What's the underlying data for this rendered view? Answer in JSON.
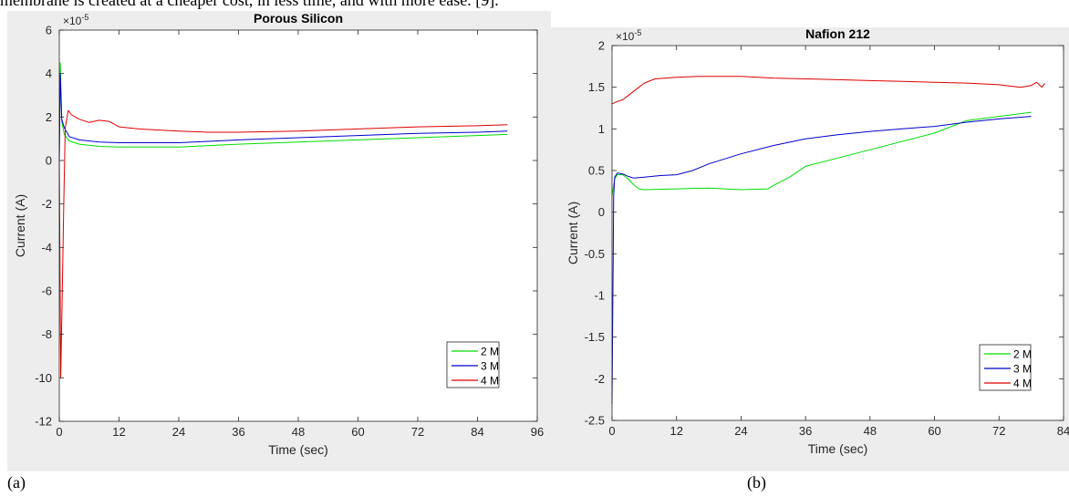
{
  "page": {
    "top_text": "membrane is created at a cheaper cost, in less time, and with more ease. [9].",
    "caption_a": "(a)",
    "caption_b": "(b)"
  },
  "chart_data": [
    {
      "type": "line",
      "title": "Porous Silicon",
      "xlabel": "Time (sec)",
      "ylabel": "Current (A)",
      "y_exponent_label": "×10",
      "y_exponent_power": "-5",
      "xlim": [
        0,
        96
      ],
      "ylim": [
        -12,
        6
      ],
      "xticks": [
        "0",
        "12",
        "24",
        "36",
        "48",
        "60",
        "72",
        "84",
        "96"
      ],
      "yticks": [
        "6",
        "4",
        "2",
        "0",
        "-2",
        "-4",
        "-6",
        "-8",
        "-10",
        "-12"
      ],
      "legend_position": "bottom-right",
      "series": [
        {
          "name": "2 M",
          "color": "#00dd00",
          "x": [
            0,
            0.2,
            0.5,
            1,
            2,
            4,
            8,
            12,
            24,
            36,
            48,
            60,
            72,
            84,
            90
          ],
          "y": [
            0,
            4.5,
            1.8,
            1.2,
            0.9,
            0.75,
            0.65,
            0.62,
            0.62,
            0.75,
            0.85,
            0.95,
            1.05,
            1.15,
            1.2
          ]
        },
        {
          "name": "3 M",
          "color": "#0000cc",
          "x": [
            0,
            0.2,
            0.5,
            1,
            2,
            4,
            8,
            12,
            24,
            36,
            48,
            60,
            72,
            84,
            90
          ],
          "y": [
            0,
            4.0,
            1.9,
            1.5,
            1.1,
            0.95,
            0.85,
            0.82,
            0.82,
            0.95,
            1.05,
            1.15,
            1.25,
            1.3,
            1.35
          ]
        },
        {
          "name": "4 M",
          "color": "#dd0000",
          "x": [
            0,
            0.3,
            0.6,
            0.9,
            1.2,
            1.8,
            2.5,
            4,
            6,
            8,
            10,
            12,
            16,
            20,
            24,
            30,
            36,
            48,
            60,
            72,
            84,
            90
          ],
          "y": [
            0,
            -10,
            -6,
            -2,
            1.5,
            2.3,
            2.1,
            1.9,
            1.75,
            1.85,
            1.8,
            1.55,
            1.45,
            1.4,
            1.35,
            1.3,
            1.3,
            1.35,
            1.45,
            1.55,
            1.6,
            1.65
          ]
        }
      ]
    },
    {
      "type": "line",
      "title": "Nafion 212",
      "xlabel": "Time (sec)",
      "ylabel": "Current (A)",
      "y_exponent_label": "×10",
      "y_exponent_power": "-5",
      "xlim": [
        0,
        84
      ],
      "ylim": [
        -2.5,
        2
      ],
      "xticks": [
        "0",
        "12",
        "24",
        "36",
        "48",
        "60",
        "72",
        "84"
      ],
      "yticks": [
        "2",
        "1.5",
        "1",
        "0.5",
        "0",
        "-0.5",
        "-1",
        "-1.5",
        "-2",
        "-2.5"
      ],
      "legend_position": "bottom-right",
      "series": [
        {
          "name": "2 M",
          "color": "#00dd00",
          "x": [
            0,
            0.5,
            1,
            2,
            3,
            4,
            5,
            6,
            12,
            18,
            24,
            29,
            30,
            33,
            36,
            48,
            60,
            66,
            72,
            78
          ],
          "y": [
            0.2,
            0.4,
            0.45,
            0.45,
            0.4,
            0.33,
            0.28,
            0.27,
            0.28,
            0.29,
            0.27,
            0.28,
            0.32,
            0.42,
            0.55,
            0.75,
            0.95,
            1.1,
            1.15,
            1.2
          ]
        },
        {
          "name": "3 M",
          "color": "#0000cc",
          "x": [
            0,
            0.3,
            0.5,
            1,
            2,
            3,
            4,
            6,
            9,
            12,
            15,
            18,
            24,
            30,
            36,
            42,
            48,
            54,
            60,
            66,
            72,
            78
          ],
          "y": [
            -2.3,
            0.2,
            0.42,
            0.47,
            0.46,
            0.43,
            0.41,
            0.42,
            0.44,
            0.45,
            0.5,
            0.58,
            0.7,
            0.8,
            0.88,
            0.93,
            0.97,
            1.0,
            1.03,
            1.08,
            1.12,
            1.15
          ]
        },
        {
          "name": "4 M",
          "color": "#dd0000",
          "x": [
            0,
            1,
            2,
            3,
            4,
            5,
            6,
            8,
            12,
            16,
            20,
            24,
            30,
            36,
            42,
            48,
            54,
            60,
            66,
            72,
            76,
            78,
            79,
            80,
            80.5
          ],
          "y": [
            1.3,
            1.33,
            1.35,
            1.4,
            1.45,
            1.5,
            1.55,
            1.6,
            1.62,
            1.63,
            1.63,
            1.63,
            1.61,
            1.6,
            1.59,
            1.58,
            1.57,
            1.56,
            1.55,
            1.53,
            1.5,
            1.52,
            1.56,
            1.5,
            1.55
          ]
        }
      ]
    }
  ]
}
